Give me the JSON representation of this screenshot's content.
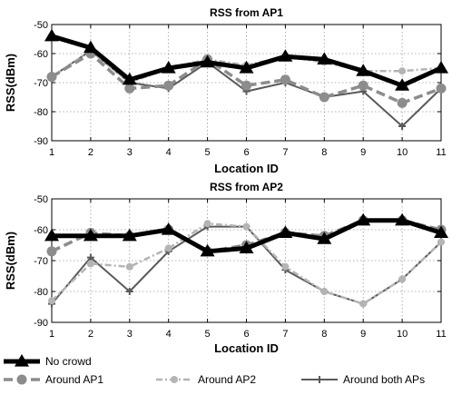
{
  "chart_data": [
    {
      "type": "line",
      "title": "RSS from AP1",
      "xlabel": "Location ID",
      "ylabel": "RSS(dBm)",
      "x": [
        1,
        2,
        3,
        4,
        5,
        6,
        7,
        8,
        9,
        10,
        11
      ],
      "xlim": [
        1,
        11
      ],
      "ylim": [
        -90,
        -50
      ],
      "yticks": [
        -50,
        -60,
        -70,
        -80,
        -90
      ],
      "grid": true,
      "series": [
        {
          "name": "No crowd",
          "values": [
            -54,
            -58,
            -69,
            -65,
            -63,
            -65,
            -61,
            -62,
            -66,
            -71,
            -65
          ]
        },
        {
          "name": "Around AP1",
          "values": [
            -68,
            -60,
            -72,
            -71,
            -62,
            -71,
            -69,
            -75,
            -71,
            -77,
            -72
          ]
        },
        {
          "name": "Around AP2",
          "values": [
            -68,
            -59,
            -70,
            -65,
            -62,
            -64,
            -61,
            -63,
            -66,
            -66,
            -65
          ]
        },
        {
          "name": "Around both APs",
          "values": [
            -68,
            -59,
            -70,
            -72,
            -63,
            -73,
            -70,
            -75,
            -73,
            -85,
            -72
          ]
        }
      ]
    },
    {
      "type": "line",
      "title": "RSS from AP2",
      "xlabel": "Location ID",
      "ylabel": "RSS(dBm)",
      "x": [
        1,
        2,
        3,
        4,
        5,
        6,
        7,
        8,
        9,
        10,
        11
      ],
      "xlim": [
        1,
        11
      ],
      "ylim": [
        -90,
        -50
      ],
      "yticks": [
        -50,
        -60,
        -70,
        -80,
        -90
      ],
      "grid": true,
      "series": [
        {
          "name": "No crowd",
          "values": [
            -62,
            -62,
            -62,
            -60,
            -67,
            -66,
            -61,
            -63,
            -57,
            -57,
            -61
          ]
        },
        {
          "name": "Around AP1",
          "values": [
            -67,
            -61,
            -62,
            -60,
            -67,
            -65,
            -61,
            -62,
            -57,
            -57,
            -60
          ]
        },
        {
          "name": "Around AP2",
          "values": [
            -83,
            -71,
            -72,
            -66,
            -58,
            -59,
            -72,
            -80,
            -84,
            -76,
            -64
          ]
        },
        {
          "name": "Around both APs",
          "values": [
            -84,
            -69,
            -80,
            -67,
            -59,
            -59,
            -73,
            -80,
            -84,
            -76,
            -64
          ]
        }
      ]
    }
  ],
  "legend": {
    "position": "bottom",
    "items": [
      {
        "label": "No crowd",
        "color": "#000000",
        "style": "solid-thick",
        "marker": "triangle"
      },
      {
        "label": "Around AP1",
        "color": "#8c8c8c",
        "style": "dashed",
        "marker": "circle"
      },
      {
        "label": "Around AP2",
        "color": "#b4b4b4",
        "style": "dash-dot",
        "marker": "circle-small"
      },
      {
        "label": "Around both APs",
        "color": "#5a5a5a",
        "style": "solid",
        "marker": "plus"
      }
    ]
  }
}
